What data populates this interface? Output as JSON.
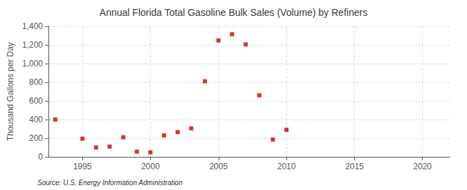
{
  "chart_data": {
    "type": "scatter",
    "title": "Annual Florida Total Gasoline Bulk Sales (Volume) by Refiners",
    "ylabel": "Thousand Gallons per Day",
    "annotation": "Source: U.S. Energy Information Administration",
    "x": [
      1993,
      1995,
      1996,
      1997,
      1998,
      1999,
      2000,
      2001,
      2002,
      2003,
      2004,
      2005,
      2006,
      2007,
      2008,
      2009,
      2010
    ],
    "values": [
      400,
      195,
      100,
      110,
      210,
      55,
      48,
      230,
      265,
      305,
      810,
      1248,
      1315,
      1205,
      660,
      185,
      290
    ],
    "color": "#cc0000",
    "marker": "square",
    "xlim": [
      1992.5,
      2022
    ],
    "xticks": [
      1995,
      2000,
      2005,
      2010,
      2015,
      2020
    ],
    "ylim": [
      0,
      1400
    ],
    "yticks": [
      0,
      200,
      400,
      600,
      {
        "value": 800,
        "label": "800"
      },
      {
        "value": 1000,
        "label": "1,000"
      },
      {
        "value": 1200,
        "label": "1,200"
      },
      {
        "value": 1400,
        "label": "1,400"
      }
    ],
    "grid": true
  }
}
